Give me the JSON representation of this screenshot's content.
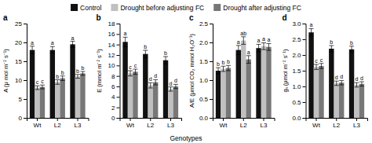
{
  "chart_data": [
    {
      "type": "bar",
      "title": "a",
      "ylabel": "A (μ mol m⁻² s⁻¹)",
      "xlabel": "Genotypes",
      "legend": "top",
      "categories": [
        "Wt",
        "L2",
        "L3"
      ],
      "ylim": [
        0,
        25
      ],
      "yticks": [
        0,
        5,
        10,
        15,
        20,
        25
      ],
      "series": [
        {
          "name": "Control",
          "color": "#111111",
          "values": [
            18.0,
            18.0,
            19.5
          ],
          "error": [
            1.0,
            0.9,
            0.8
          ],
          "annotations": [
            "a",
            "a",
            "a"
          ]
        },
        {
          "name": "Drought before adjusting FC",
          "color": "#c0c0c0",
          "values": [
            8.0,
            9.5,
            11.0
          ],
          "error": [
            0.5,
            0.6,
            0.5
          ],
          "annotations": [
            "c",
            "b",
            "b"
          ]
        },
        {
          "name": "Drought after adjusting FC",
          "color": "#777777",
          "values": [
            8.2,
            10.5,
            11.8
          ],
          "error": [
            0.5,
            0.6,
            0.5
          ],
          "annotations": [
            "c",
            "b",
            "b"
          ]
        }
      ]
    },
    {
      "type": "bar",
      "title": "b",
      "ylabel": "E (mmol m⁻² s⁻¹)",
      "categories": [
        "Wt",
        "L2",
        "L3"
      ],
      "ylim": [
        0,
        18
      ],
      "yticks": [
        0,
        2,
        4,
        6,
        8,
        10,
        12,
        14,
        16,
        18
      ],
      "series": [
        {
          "name": "Control",
          "color": "#111111",
          "values": [
            14.5,
            12.2,
            11.0
          ],
          "error": [
            0.9,
            0.7,
            0.7
          ],
          "annotations": [
            "a",
            "b",
            "b"
          ]
        },
        {
          "name": "Drought before adjusting FC",
          "color": "#c0c0c0",
          "values": [
            8.5,
            6.2,
            5.5
          ],
          "error": [
            0.5,
            0.5,
            0.4
          ],
          "annotations": [
            "c",
            "d",
            "d"
          ]
        },
        {
          "name": "Drought after adjusting FC",
          "color": "#777777",
          "values": [
            8.8,
            6.8,
            6.0
          ],
          "error": [
            0.5,
            0.5,
            0.4
          ],
          "annotations": [
            "c",
            "d",
            "d"
          ]
        }
      ]
    },
    {
      "type": "bar",
      "title": "c",
      "ylabel": "A/E (μmol CO₂ mmol H₂O⁻¹)",
      "categories": [
        "Wt",
        "L2",
        "L3"
      ],
      "ylim": [
        0.0,
        2.5
      ],
      "yticks": [
        {
          "value": 0,
          "label": "0.0"
        },
        0.5,
        {
          "value": 1,
          "label": "1.0"
        },
        1.5,
        {
          "value": 2,
          "label": "2.0"
        },
        2.5
      ],
      "series": [
        {
          "name": "Control",
          "color": "#111111",
          "values": [
            1.25,
            1.8,
            1.85
          ],
          "error": [
            0.08,
            0.12,
            0.1
          ],
          "annotations": [
            "b",
            "a",
            "a"
          ]
        },
        {
          "name": "Drought before adjusting FC",
          "color": "#c0c0c0",
          "values": [
            1.3,
            2.05,
            1.9
          ],
          "error": [
            0.07,
            0.1,
            0.09
          ],
          "annotations": [
            "b",
            "ab",
            "a"
          ]
        },
        {
          "name": "Drought after adjusting FC",
          "color": "#777777",
          "values": [
            1.32,
            1.55,
            1.88
          ],
          "error": [
            0.07,
            0.1,
            0.09
          ],
          "annotations": [
            "b",
            "a",
            "a"
          ]
        }
      ]
    },
    {
      "type": "bar",
      "title": "d",
      "ylabel": "gₛ (μmol m⁻² s⁻¹)",
      "categories": [
        "Wt",
        "L2",
        "L3"
      ],
      "ylim": [
        0.0,
        3.0
      ],
      "yticks": [
        {
          "value": 0,
          "label": "0.0"
        },
        0.5,
        {
          "value": 1,
          "label": "1.0"
        },
        1.5,
        {
          "value": 2,
          "label": "2.0"
        },
        2.5,
        {
          "value": 3,
          "label": "3.0"
        }
      ],
      "series": [
        {
          "name": "Control",
          "color": "#111111",
          "values": [
            2.72,
            2.2,
            2.18
          ],
          "error": [
            0.12,
            0.1,
            0.1
          ],
          "annotations": [
            "a",
            "b",
            "b"
          ]
        },
        {
          "name": "Drought before adjusting FC",
          "color": "#c0c0c0",
          "values": [
            1.62,
            1.1,
            1.05
          ],
          "error": [
            0.08,
            0.07,
            0.07
          ],
          "annotations": [
            "c",
            "d",
            "d"
          ]
        },
        {
          "name": "Drought after adjusting FC",
          "color": "#777777",
          "values": [
            1.65,
            1.12,
            1.08
          ],
          "error": [
            0.08,
            0.07,
            0.07
          ],
          "annotations": [
            "c",
            "d",
            "d"
          ]
        }
      ]
    }
  ]
}
